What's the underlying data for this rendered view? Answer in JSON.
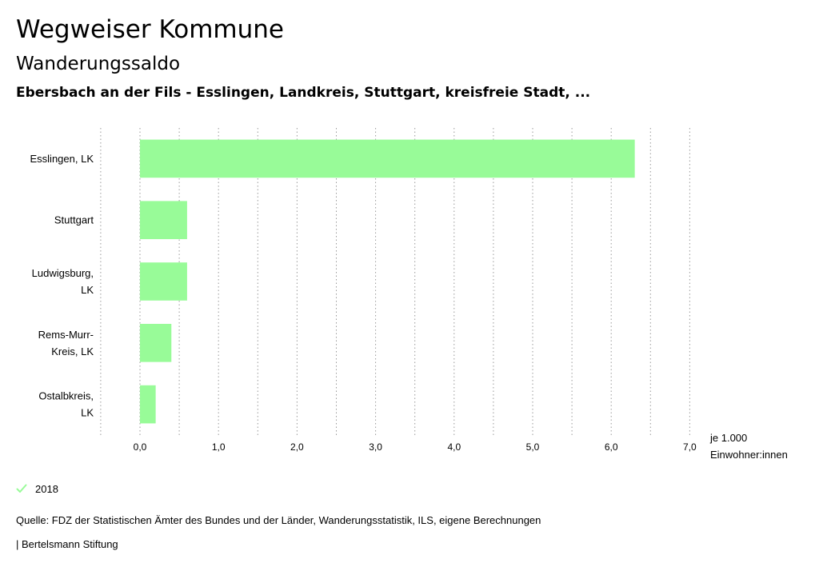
{
  "header": {
    "title": "Wegweiser Kommune",
    "subtitle": "Wanderungssaldo",
    "region": "Ebersbach an der Fils - Esslingen, Landkreis, Stuttgart, kreisfreie Stadt, ..."
  },
  "chart_data": {
    "type": "bar",
    "orientation": "horizontal",
    "categories": [
      [
        "Esslingen, LK"
      ],
      [
        "Stuttgart"
      ],
      [
        "Ludwigsburg,",
        "LK"
      ],
      [
        "Rems-Murr-",
        "Kreis, LK"
      ],
      [
        "Ostalbkreis,",
        "LK"
      ]
    ],
    "series": [
      {
        "name": "2018",
        "values": [
          6.3,
          0.6,
          0.6,
          0.4,
          0.2
        ],
        "color": "#98fb98"
      }
    ],
    "xlim": [
      -0.5,
      7.0
    ],
    "xticks": [
      0,
      1,
      2,
      3,
      4,
      5,
      6,
      7
    ],
    "xtick_labels": [
      "0,0",
      "1,0",
      "2,0",
      "3,0",
      "4,0",
      "5,0",
      "6,0",
      "7,0"
    ],
    "xlabel": [
      "je 1.000",
      "Einwohner:innen"
    ],
    "grid": true,
    "grid_style": "dotted",
    "legend_position": "bottom-left"
  },
  "legend": {
    "label": "2018",
    "color": "#98fb98",
    "icon": "check-icon"
  },
  "footer": {
    "source": "Quelle: FDZ der Statistischen Ämter des Bundes und der Länder, Wanderungsstatistik, ILS, eigene Berechnungen",
    "publisher": "| Bertelsmann Stiftung"
  }
}
